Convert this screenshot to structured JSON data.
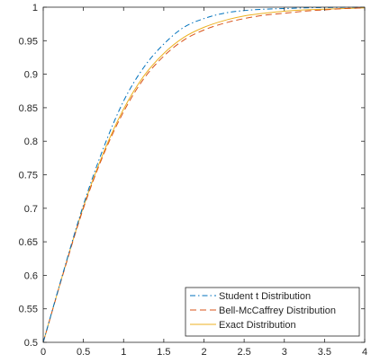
{
  "chart_data": {
    "type": "line",
    "title": "",
    "xlabel": "",
    "ylabel": "",
    "xlim": [
      0,
      4
    ],
    "ylim": [
      0.5,
      1.0
    ],
    "grid": false,
    "box": true,
    "legend_position": "bottom-right",
    "xticks": [
      0,
      0.5,
      1,
      1.5,
      2,
      2.5,
      3,
      3.5,
      4
    ],
    "xtick_labels": [
      "0",
      "0.5",
      "1",
      "1.5",
      "2",
      "2.5",
      "3",
      "3.5",
      "4"
    ],
    "yticks": [
      0.5,
      0.55,
      0.6,
      0.65,
      0.7,
      0.75,
      0.8,
      0.85,
      0.9,
      0.95,
      1.0
    ],
    "ytick_labels": [
      "0.5",
      "0.55",
      "0.6",
      "0.65",
      "0.7",
      "0.75",
      "0.8",
      "0.85",
      "0.9",
      "0.95",
      "1"
    ],
    "x": [
      0,
      0.25,
      0.5,
      0.75,
      1.0,
      1.25,
      1.5,
      1.75,
      2.0,
      2.25,
      2.5,
      2.75,
      3.0,
      3.25,
      3.5,
      3.75,
      4.0
    ],
    "series": [
      {
        "name": "Student t Distribution",
        "color": "#0072BD",
        "dash": "dashdot",
        "values": [
          0.5,
          0.605,
          0.705,
          0.79,
          0.86,
          0.91,
          0.945,
          0.97,
          0.983,
          0.991,
          0.995,
          0.997,
          0.998,
          0.999,
          0.9995,
          0.9998,
          1.0
        ]
      },
      {
        "name": "Bell-McCaffrey Distribution",
        "color": "#D95319",
        "dash": "dashed",
        "values": [
          0.5,
          0.603,
          0.7,
          0.78,
          0.844,
          0.893,
          0.927,
          0.951,
          0.966,
          0.976,
          0.983,
          0.988,
          0.991,
          0.994,
          0.996,
          0.998,
          0.999
        ]
      },
      {
        "name": "Exact Distribution",
        "color": "#EDB120",
        "dash": "solid",
        "values": [
          0.5,
          0.604,
          0.702,
          0.783,
          0.848,
          0.897,
          0.931,
          0.955,
          0.97,
          0.98,
          0.987,
          0.991,
          0.994,
          0.996,
          0.997,
          0.998,
          0.999
        ]
      }
    ]
  }
}
